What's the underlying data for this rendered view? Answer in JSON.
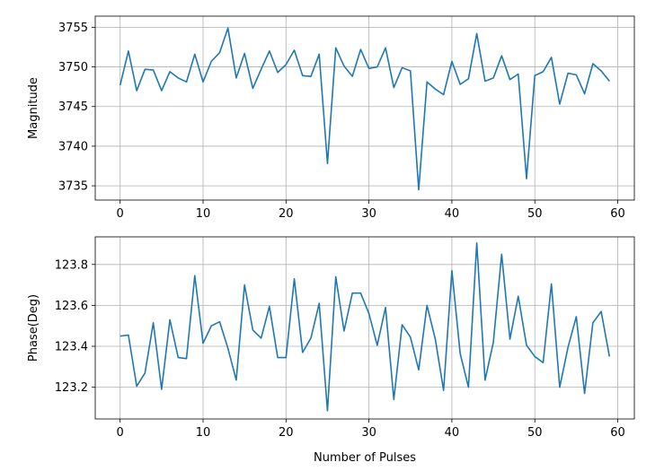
{
  "colors": {
    "series": "#1f77b4",
    "grid": "#b0b0b0",
    "axes": "#000000"
  },
  "chart_data": [
    {
      "type": "line",
      "title": "",
      "xlabel": "",
      "ylabel": "Magnitude",
      "grid": true,
      "xlim": [
        -3,
        62
      ],
      "ylim": [
        3733.2,
        3756.4
      ],
      "xticks": [
        0,
        10,
        20,
        30,
        40,
        50,
        60
      ],
      "yticks": [
        3735,
        3740,
        3745,
        3750,
        3755
      ],
      "xtick_labels": [
        "0",
        "10",
        "20",
        "30",
        "40",
        "50",
        "60"
      ],
      "ytick_labels": [
        "3735",
        "3740",
        "3745",
        "3750",
        "3755"
      ],
      "x": [
        0,
        1,
        2,
        3,
        4,
        5,
        6,
        7,
        8,
        9,
        10,
        11,
        12,
        13,
        14,
        15,
        16,
        17,
        18,
        19,
        20,
        21,
        22,
        23,
        24,
        25,
        26,
        27,
        28,
        29,
        30,
        31,
        32,
        33,
        34,
        35,
        36,
        37,
        38,
        39,
        40,
        41,
        42,
        43,
        44,
        45,
        46,
        47,
        48,
        49,
        50,
        51,
        52,
        53,
        54,
        55,
        56,
        57,
        58,
        59
      ],
      "series": [
        {
          "values": [
            3747.7,
            3752.0,
            3747.0,
            3749.7,
            3749.6,
            3747.0,
            3749.4,
            3748.6,
            3748.1,
            3751.6,
            3748.1,
            3750.7,
            3751.8,
            3754.9,
            3748.6,
            3751.7,
            3747.3,
            3749.7,
            3752.0,
            3749.3,
            3750.3,
            3752.1,
            3748.9,
            3748.8,
            3751.6,
            3737.8,
            3752.4,
            3750.1,
            3748.8,
            3752.2,
            3749.8,
            3750.0,
            3752.4,
            3747.4,
            3749.9,
            3749.5,
            3734.5,
            3748.1,
            3747.2,
            3746.5,
            3750.7,
            3747.8,
            3748.5,
            3754.2,
            3748.2,
            3748.6,
            3751.4,
            3748.4,
            3749.1,
            3735.9,
            3748.9,
            3749.4,
            3751.2,
            3745.3,
            3749.2,
            3749.0,
            3746.6,
            3750.4,
            3749.5,
            3748.2
          ]
        }
      ]
    },
    {
      "type": "line",
      "title": "",
      "xlabel": "Number of Pulses",
      "ylabel": "Phase(Deg)",
      "grid": true,
      "xlim": [
        -3,
        62
      ],
      "ylim": [
        123.045,
        123.935
      ],
      "xticks": [
        0,
        10,
        20,
        30,
        40,
        50,
        60
      ],
      "yticks": [
        123.2,
        123.4,
        123.6,
        123.8
      ],
      "xtick_labels": [
        "0",
        "10",
        "20",
        "30",
        "40",
        "50",
        "60"
      ],
      "ytick_labels": [
        "123.2",
        "123.4",
        "123.6",
        "123.8"
      ],
      "x": [
        0,
        1,
        2,
        3,
        4,
        5,
        6,
        7,
        8,
        9,
        10,
        11,
        12,
        13,
        14,
        15,
        16,
        17,
        18,
        19,
        20,
        21,
        22,
        23,
        24,
        25,
        26,
        27,
        28,
        29,
        30,
        31,
        32,
        33,
        34,
        35,
        36,
        37,
        38,
        39,
        40,
        41,
        42,
        43,
        44,
        45,
        46,
        47,
        48,
        49,
        50,
        51,
        52,
        53,
        54,
        55,
        56,
        57,
        58,
        59
      ],
      "series": [
        {
          "values": [
            123.45,
            123.455,
            123.205,
            123.27,
            123.515,
            123.19,
            123.53,
            123.345,
            123.34,
            123.745,
            123.415,
            123.5,
            123.52,
            123.39,
            123.235,
            123.7,
            123.48,
            123.44,
            123.595,
            123.345,
            123.345,
            123.73,
            123.37,
            123.44,
            123.61,
            123.085,
            123.74,
            123.475,
            123.66,
            123.66,
            123.56,
            123.405,
            123.59,
            123.14,
            123.505,
            123.445,
            123.285,
            123.6,
            123.435,
            123.185,
            123.77,
            123.365,
            123.2,
            123.905,
            123.235,
            123.42,
            123.85,
            123.435,
            123.645,
            123.405,
            123.35,
            123.32,
            123.705,
            123.2,
            123.395,
            123.545,
            123.17,
            123.515,
            123.57,
            123.35
          ]
        }
      ]
    }
  ]
}
